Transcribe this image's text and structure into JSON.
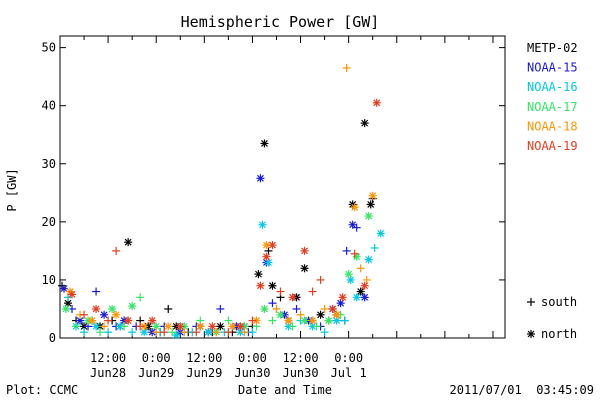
{
  "chart_data": {
    "type": "scatter",
    "title": "Hemispheric Power [GW]",
    "ylabel": "P [GW]",
    "xlabel": "Date and Time",
    "ylim": [
      0,
      52
    ],
    "yticks": [
      0,
      10,
      20,
      30,
      40,
      50
    ],
    "xlim_hours": [
      0,
      111
    ],
    "xticks": [
      {
        "hour": 12,
        "top": "12:00",
        "bottom": "Jun28"
      },
      {
        "hour": 24,
        "top": "0:00",
        "bottom": "Jun29"
      },
      {
        "hour": 36,
        "top": "12:00",
        "bottom": "Jun29"
      },
      {
        "hour": 48,
        "top": "0:00",
        "bottom": "Jun30"
      },
      {
        "hour": 60,
        "top": "12:00",
        "bottom": "Jun30"
      },
      {
        "hour": 72,
        "top": "0:00",
        "bottom": "Jul 1"
      }
    ],
    "legend_position": "right",
    "marker_legend": [
      {
        "symbol": "+",
        "label": "south"
      },
      {
        "symbol": "*",
        "label": "north"
      }
    ],
    "series": [
      {
        "name": "METP-02",
        "color": "#000000",
        "points": [
          [
            0.5,
            9,
            "+"
          ],
          [
            2,
            6,
            "*"
          ],
          [
            4,
            3,
            "+"
          ],
          [
            6,
            2,
            "*"
          ],
          [
            8,
            3,
            "+"
          ],
          [
            10,
            2,
            "*"
          ],
          [
            13,
            3,
            "+"
          ],
          [
            15,
            2,
            "*"
          ],
          [
            17,
            16.5,
            "*"
          ],
          [
            20,
            3,
            "+"
          ],
          [
            22,
            2,
            "*"
          ],
          [
            25,
            1,
            "+"
          ],
          [
            27,
            5,
            "+"
          ],
          [
            29,
            2,
            "*"
          ],
          [
            32,
            1,
            "+"
          ],
          [
            35,
            2,
            "*"
          ],
          [
            38,
            1,
            "+"
          ],
          [
            40,
            2,
            "*"
          ],
          [
            43,
            1,
            "+"
          ],
          [
            46,
            2,
            "*"
          ],
          [
            48,
            2,
            "+"
          ],
          [
            49.5,
            11,
            "*"
          ],
          [
            51,
            33.5,
            "*"
          ],
          [
            52,
            15,
            "+"
          ],
          [
            53,
            9,
            "*"
          ],
          [
            55,
            7,
            "+"
          ],
          [
            57,
            3,
            "*"
          ],
          [
            59,
            7,
            "*"
          ],
          [
            61,
            12,
            "*"
          ],
          [
            63,
            3,
            "+"
          ],
          [
            65,
            4,
            "*"
          ],
          [
            67,
            3,
            "+"
          ],
          [
            69,
            4,
            "*"
          ],
          [
            71,
            3,
            "+"
          ],
          [
            73,
            23,
            "*"
          ],
          [
            75,
            8,
            "*"
          ],
          [
            76,
            37,
            "*"
          ],
          [
            77.5,
            23,
            "*"
          ],
          [
            78,
            24,
            "+"
          ]
        ]
      },
      {
        "name": "NOAA-15",
        "color": "#1a1adc",
        "points": [
          [
            1,
            8.5,
            "*"
          ],
          [
            3,
            5,
            "+"
          ],
          [
            5,
            3,
            "*"
          ],
          [
            7,
            2,
            "+"
          ],
          [
            9,
            8,
            "+"
          ],
          [
            11,
            4,
            "*"
          ],
          [
            14,
            2,
            "+"
          ],
          [
            16,
            3,
            "*"
          ],
          [
            19,
            2,
            "+"
          ],
          [
            23,
            1,
            "*"
          ],
          [
            26,
            2,
            "+"
          ],
          [
            30,
            1,
            "*"
          ],
          [
            34,
            2,
            "+"
          ],
          [
            37,
            1,
            "*"
          ],
          [
            40,
            5,
            "+"
          ],
          [
            44,
            2,
            "*"
          ],
          [
            47,
            1,
            "+"
          ],
          [
            50,
            27.5,
            "*"
          ],
          [
            51.5,
            13,
            "*"
          ],
          [
            53,
            6,
            "+"
          ],
          [
            56,
            4,
            "*"
          ],
          [
            59,
            5,
            "+"
          ],
          [
            62,
            3,
            "*"
          ],
          [
            65,
            2,
            "+"
          ],
          [
            68,
            5,
            "*"
          ],
          [
            70,
            6,
            "*"
          ],
          [
            71.5,
            15,
            "+"
          ],
          [
            73,
            19.5,
            "*"
          ],
          [
            74,
            19,
            "+"
          ],
          [
            76,
            7,
            "*"
          ]
        ]
      },
      {
        "name": "NOAA-16",
        "color": "#00c8e6",
        "points": [
          [
            2,
            7,
            "+"
          ],
          [
            4,
            2,
            "*"
          ],
          [
            6,
            1,
            "+"
          ],
          [
            9,
            2,
            "*"
          ],
          [
            12,
            1,
            "+"
          ],
          [
            15,
            2,
            "*"
          ],
          [
            18,
            1,
            "+"
          ],
          [
            21,
            1,
            "*"
          ],
          [
            25,
            1,
            "+"
          ],
          [
            29,
            0.5,
            "*"
          ],
          [
            33,
            1,
            "+"
          ],
          [
            37,
            1,
            "*"
          ],
          [
            41,
            1,
            "+"
          ],
          [
            45,
            1,
            "*"
          ],
          [
            48,
            1,
            "+"
          ],
          [
            50.5,
            19.5,
            "*"
          ],
          [
            52,
            13,
            "*"
          ],
          [
            54,
            5,
            "+"
          ],
          [
            57,
            2,
            "*"
          ],
          [
            60,
            3,
            "+"
          ],
          [
            63,
            2,
            "*"
          ],
          [
            66,
            1,
            "+"
          ],
          [
            69,
            3,
            "*"
          ],
          [
            71,
            3,
            "+"
          ],
          [
            72.5,
            10,
            "*"
          ],
          [
            74,
            7,
            "*"
          ],
          [
            77,
            13.5,
            "*"
          ],
          [
            78.5,
            15.5,
            "+"
          ],
          [
            80,
            18,
            "*"
          ]
        ]
      },
      {
        "name": "NOAA-17",
        "color": "#32e664",
        "points": [
          [
            1.5,
            5,
            "*"
          ],
          [
            4,
            2,
            "+"
          ],
          [
            7,
            3,
            "*"
          ],
          [
            10,
            1,
            "+"
          ],
          [
            13,
            5,
            "*"
          ],
          [
            16,
            2,
            "+"
          ],
          [
            18,
            5.5,
            "*"
          ],
          [
            20,
            7,
            "+"
          ],
          [
            24,
            2,
            "*"
          ],
          [
            28,
            1,
            "+"
          ],
          [
            31,
            2,
            "*"
          ],
          [
            35,
            3,
            "+"
          ],
          [
            39,
            1,
            "*"
          ],
          [
            42,
            3,
            "+"
          ],
          [
            46,
            2,
            "*"
          ],
          [
            49,
            2,
            "+"
          ],
          [
            51,
            5,
            "*"
          ],
          [
            53,
            3,
            "+"
          ],
          [
            55,
            4,
            "*"
          ],
          [
            58,
            2,
            "+"
          ],
          [
            61,
            3,
            "*"
          ],
          [
            64,
            2,
            "+"
          ],
          [
            67,
            3,
            "*"
          ],
          [
            70,
            4,
            "+"
          ],
          [
            72,
            11,
            "*"
          ],
          [
            74,
            14,
            "*"
          ],
          [
            77,
            21,
            "*"
          ]
        ]
      },
      {
        "name": "NOAA-18",
        "color": "#ff9600",
        "points": [
          [
            2.5,
            8,
            "*"
          ],
          [
            5,
            4,
            "+"
          ],
          [
            8,
            3,
            "*"
          ],
          [
            11,
            2,
            "+"
          ],
          [
            14,
            4,
            "*"
          ],
          [
            17,
            3,
            "+"
          ],
          [
            21,
            2,
            "*"
          ],
          [
            24,
            1,
            "+"
          ],
          [
            27,
            2,
            "*"
          ],
          [
            31,
            1,
            "+"
          ],
          [
            35,
            2,
            "*"
          ],
          [
            39,
            1,
            "+"
          ],
          [
            43,
            2,
            "*"
          ],
          [
            46,
            1,
            "+"
          ],
          [
            49,
            3,
            "*"
          ],
          [
            51.5,
            16,
            "*"
          ],
          [
            54,
            5,
            "+"
          ],
          [
            57,
            3,
            "*"
          ],
          [
            60,
            4,
            "+"
          ],
          [
            63,
            3,
            "*"
          ],
          [
            66,
            5,
            "+"
          ],
          [
            69,
            4,
            "*"
          ],
          [
            71.5,
            46.5,
            "+"
          ],
          [
            73.5,
            22.5,
            "*"
          ],
          [
            75,
            12,
            "+"
          ],
          [
            76.5,
            10,
            "+"
          ],
          [
            78,
            24.5,
            "*"
          ]
        ]
      },
      {
        "name": "NOAA-19",
        "color": "#e63c1e",
        "points": [
          [
            3,
            7.5,
            "*"
          ],
          [
            6,
            4,
            "+"
          ],
          [
            9,
            5,
            "*"
          ],
          [
            12,
            3,
            "+"
          ],
          [
            14,
            15,
            "+"
          ],
          [
            17,
            3,
            "*"
          ],
          [
            20,
            2,
            "+"
          ],
          [
            23,
            3,
            "*"
          ],
          [
            26,
            1,
            "+"
          ],
          [
            30,
            2,
            "*"
          ],
          [
            34,
            1,
            "+"
          ],
          [
            38,
            2,
            "*"
          ],
          [
            42,
            1,
            "+"
          ],
          [
            45,
            2,
            "*"
          ],
          [
            48,
            3,
            "+"
          ],
          [
            50,
            9,
            "*"
          ],
          [
            51.5,
            14,
            "*"
          ],
          [
            53,
            16,
            "*"
          ],
          [
            55,
            8,
            "+"
          ],
          [
            58,
            7,
            "*"
          ],
          [
            61,
            15,
            "*"
          ],
          [
            63,
            8,
            "+"
          ],
          [
            65,
            10,
            "+"
          ],
          [
            68,
            5,
            "*"
          ],
          [
            70.5,
            7,
            "*"
          ],
          [
            73.5,
            14.5,
            "+"
          ],
          [
            76,
            9,
            "*"
          ],
          [
            79,
            40.5,
            "*"
          ]
        ]
      }
    ]
  },
  "footer": {
    "left": "Plot: CCMC",
    "center": "Date and Time",
    "right": "2011/07/01  03:45:09"
  }
}
